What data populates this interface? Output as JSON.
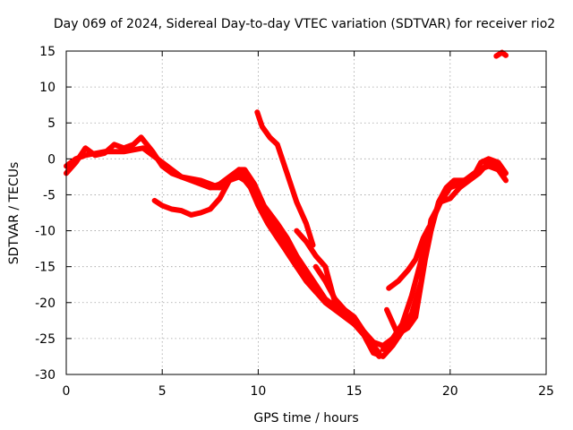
{
  "chart_data": {
    "type": "line",
    "title": "Day 069 of 2024, Sidereal Day-to-day VTEC variation (SDTVAR) for receiver rio2",
    "xlabel": "GPS time / hours",
    "ylabel": "SDTVAR / TECUs",
    "xlim": [
      0,
      25
    ],
    "ylim": [
      -30,
      15
    ],
    "xticks": [
      0,
      5,
      10,
      15,
      20,
      25
    ],
    "yticks": [
      -30,
      -25,
      -20,
      -15,
      -10,
      -5,
      0,
      5,
      10,
      15
    ],
    "grid": true,
    "legend": "none",
    "color": "#ff0000",
    "series": [
      {
        "name": "track-1",
        "x": [
          0,
          0.5,
          1.0,
          1.5,
          2.0,
          2.5,
          3.0,
          3.5,
          3.9,
          4.5,
          5.0,
          5.5,
          6.0,
          6.5,
          7.0,
          7.5,
          8.0,
          8.5,
          9.0,
          9.3,
          9.6,
          10.0,
          10.5,
          11.0,
          11.5,
          12.0,
          12.5,
          13.0,
          13.5,
          14.0,
          14.5,
          15.0,
          15.5,
          16.0,
          16.3
        ],
        "y": [
          -2,
          -0.5,
          1.5,
          0.5,
          0.8,
          2,
          1.5,
          2,
          3,
          1,
          -1,
          -2,
          -2.5,
          -3,
          -3.5,
          -4,
          -4,
          -3,
          -1.5,
          -2,
          -3,
          -6,
          -8.5,
          -10,
          -12,
          -14,
          -16.5,
          -18.5,
          -20,
          -21,
          -22,
          -23,
          -24,
          -26.5,
          -27.5
        ]
      },
      {
        "name": "track-2",
        "x": [
          0,
          0.5,
          1.0,
          2.0,
          3.0,
          4.0,
          5.0,
          5.5,
          6.0,
          7.0,
          7.5,
          8.0,
          8.5,
          9.0,
          9.3,
          9.6,
          10.0,
          10.5,
          11.0,
          11.5,
          12.0,
          12.5,
          13.0,
          13.5
        ],
        "y": [
          -1,
          0,
          0.5,
          1,
          1,
          1.5,
          -0.5,
          -1.5,
          -2.5,
          -3,
          -3.5,
          -4,
          -3,
          -2.5,
          -3,
          -4,
          -6.5,
          -9,
          -11,
          -13,
          -15,
          -17,
          -18.5,
          -19.5
        ]
      },
      {
        "name": "track-3",
        "x": [
          4.6,
          5.0,
          5.5,
          6.0,
          6.5,
          7.0,
          7.5,
          8.0,
          8.5,
          9.0,
          9.5,
          10.0,
          10.5,
          11.0,
          11.5,
          12.0,
          12.3
        ],
        "y": [
          -5.8,
          -6.5,
          -7,
          -7.2,
          -7.8,
          -7.5,
          -7,
          -5.5,
          -3,
          -2,
          -2.5,
          -5,
          -8,
          -10.5,
          -13,
          -15,
          -16
        ]
      },
      {
        "name": "track-4",
        "x": [
          7.5,
          8.0,
          8.5,
          9.0,
          9.3,
          9.8,
          10.3,
          11.0,
          11.5,
          12.0,
          12.5,
          13.0,
          13.5,
          14.0,
          14.5,
          15.0,
          15.5,
          16.0,
          16.3
        ],
        "y": [
          -4,
          -3.5,
          -2.5,
          -1.5,
          -1.5,
          -3.5,
          -6.5,
          -9,
          -11,
          -13.5,
          -15.5,
          -17.5,
          -19.5,
          -20.5,
          -21.5,
          -23,
          -24,
          -26,
          -27
        ]
      },
      {
        "name": "track-5",
        "x": [
          9.95,
          10.2,
          10.6,
          11.0,
          11.5,
          12.0,
          12.5,
          12.85
        ],
        "y": [
          6.5,
          4.5,
          3,
          2,
          -2,
          -6,
          -9,
          -12
        ]
      },
      {
        "name": "track-6",
        "x": [
          12.0,
          12.5,
          13.0,
          13.5,
          14.0,
          14.5,
          15.0,
          15.5,
          16.0,
          16.5,
          17.0,
          17.5,
          18.0,
          18.5,
          19.0,
          19.5,
          20.0,
          20.5,
          21.0,
          21.5,
          22.0,
          22.5,
          22.8
        ],
        "y": [
          -10,
          -11.5,
          -13.5,
          -15,
          -20,
          -21,
          -23,
          -24.5,
          -27,
          -27.5,
          -26,
          -24,
          -21.5,
          -17,
          -8.5,
          -6,
          -5.5,
          -4,
          -3,
          -2,
          -0.5,
          -1,
          -2.5
        ]
      },
      {
        "name": "track-7",
        "x": [
          13.0,
          13.5,
          14.0,
          14.5,
          15.0,
          15.5,
          16.0,
          16.5,
          17.0,
          17.5,
          18.0,
          18.5,
          19.0,
          19.5,
          20.0,
          20.5,
          21.0,
          21.5,
          22.0,
          22.5,
          22.9
        ],
        "y": [
          -15,
          -17,
          -19.5,
          -21,
          -22,
          -24,
          -25.5,
          -26,
          -25,
          -23,
          -19,
          -14,
          -9,
          -6,
          -4,
          -3.5,
          -2.5,
          -1.5,
          -1,
          -1.5,
          -3
        ]
      },
      {
        "name": "track-8",
        "x": [
          16.5,
          17.0,
          17.5,
          17.8,
          18.2,
          18.7,
          19.0,
          19.4,
          19.8,
          20.2,
          20.7,
          21.2,
          21.6,
          22.0,
          22.5,
          22.9
        ],
        "y": [
          -26.5,
          -25,
          -24,
          -23.5,
          -22,
          -14,
          -10,
          -6,
          -4,
          -3,
          -3,
          -2.5,
          -0.5,
          0,
          -0.5,
          -2
        ]
      },
      {
        "name": "track-9",
        "x": [
          16.7,
          17.2,
          17.5,
          18.0
        ],
        "y": [
          -21,
          -24,
          -23.5,
          -22
        ]
      },
      {
        "name": "track-10",
        "x": [
          16.8,
          17.3,
          17.8,
          18.2,
          18.6,
          18.9
        ],
        "y": [
          -18,
          -17,
          -15.5,
          -14,
          -11,
          -9.5
        ]
      },
      {
        "name": "track-11",
        "x": [
          22.4,
          22.7,
          22.9
        ],
        "y": [
          14.3,
          14.8,
          14.4
        ]
      }
    ]
  }
}
